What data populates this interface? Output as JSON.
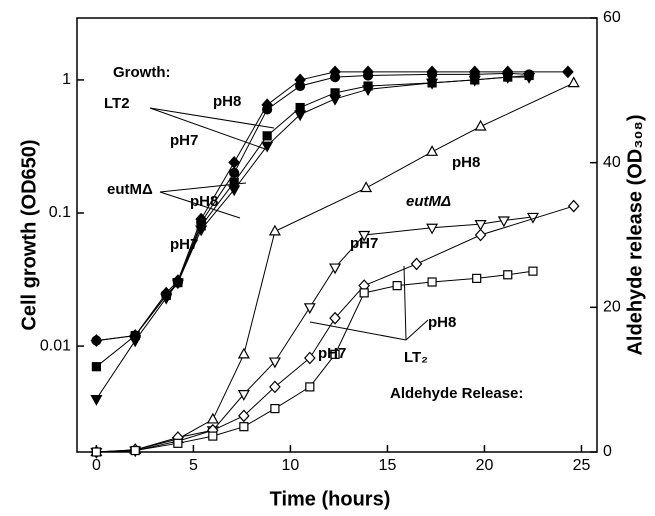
{
  "chart_data": {
    "type": "line",
    "xlabel": "Time (hours)",
    "ylabel": "Cell growth (OD650)",
    "y2label": "Aldehyde release (OD₃₀₈)",
    "xlim": [
      -1,
      25.8
    ],
    "xticks": [
      0,
      5,
      10,
      15,
      20,
      25
    ],
    "ylim": [
      0.0016,
      2.92
    ],
    "yticks": [
      0.01,
      0.1,
      1
    ],
    "log_y": true,
    "y2lim": [
      0,
      60
    ],
    "y2ticks": [
      0,
      20,
      40,
      60
    ],
    "annotations": [
      "Growth:",
      "LT2",
      "pH8",
      "pH7",
      "eutMΔ",
      "pH8",
      "pH7",
      "pH8",
      "pH7",
      "eutMΔ",
      "pH8",
      "pH7",
      "LT₂",
      "Aldehyde Release:"
    ],
    "series": [
      {
        "color": "#000000",
        "marker": "diamond",
        "filled": true,
        "axis": "y",
        "x": [
          0,
          2,
          3.6,
          4.2,
          5.4,
          7.1,
          8.8,
          10.5,
          12.3,
          14,
          17.3,
          19.5,
          21.2,
          24.3
        ],
        "values": [
          0.011,
          0.012,
          0.025,
          0.031,
          0.09,
          0.24,
          0.65,
          1.0,
          1.15,
          1.15,
          1.15,
          1.15,
          1.15,
          1.15
        ]
      },
      {
        "color": "#000000",
        "marker": "circle",
        "filled": true,
        "axis": "y",
        "x": [
          0,
          2,
          3.6,
          4.2,
          5.4,
          7.1,
          8.8,
          10.5,
          12.3,
          14,
          17.3,
          19.5,
          21.2,
          22.3
        ],
        "values": [
          0.011,
          0.012,
          0.024,
          0.03,
          0.085,
          0.2,
          0.6,
          0.9,
          1.05,
          1.08,
          1.1,
          1.1,
          1.12,
          1.1
        ]
      },
      {
        "color": "#000000",
        "marker": "square",
        "filled": true,
        "axis": "y",
        "x": [
          0,
          2,
          3.6,
          4.2,
          5.4,
          7.1,
          8.8,
          10.5,
          12.3,
          14,
          17.3,
          19.5,
          21.2,
          22.3
        ],
        "values": [
          0.007,
          0.012,
          0.024,
          0.03,
          0.08,
          0.17,
          0.38,
          0.62,
          0.8,
          0.9,
          0.95,
          1.0,
          1.05,
          1.08
        ]
      },
      {
        "color": "#000000",
        "marker": "triangle-down",
        "filled": true,
        "axis": "y",
        "x": [
          0,
          2,
          3.6,
          4.2,
          5.4,
          7.1,
          8.8,
          10.5,
          12.3,
          14,
          17.3,
          19.5,
          21.2,
          22.3
        ],
        "values": [
          0.004,
          0.011,
          0.023,
          0.03,
          0.075,
          0.15,
          0.32,
          0.55,
          0.72,
          0.85,
          0.95,
          1.0,
          1.05,
          1.05
        ]
      },
      {
        "color": "#000000",
        "marker": "triangle-up",
        "filled": false,
        "axis": "y2",
        "x": [
          0,
          2,
          4.2,
          6,
          7.6,
          9.2,
          13.9,
          17.3,
          19.8,
          24.6
        ],
        "values": [
          0,
          0.3,
          1.8,
          4.5,
          13.5,
          30.5,
          36.5,
          41.5,
          45,
          51
        ]
      },
      {
        "color": "#000000",
        "marker": "triangle-down",
        "filled": false,
        "axis": "y2",
        "x": [
          0,
          2,
          4.2,
          6,
          7.6,
          9.2,
          11,
          12.3,
          13.8,
          17.3,
          19.8,
          21,
          22.5
        ],
        "values": [
          0,
          0.2,
          1.5,
          3,
          8,
          12.5,
          20,
          25.5,
          30,
          31,
          31.5,
          32,
          32.5
        ]
      },
      {
        "color": "#000000",
        "marker": "diamond",
        "filled": false,
        "axis": "y2",
        "x": [
          0,
          2,
          4.2,
          6,
          7.6,
          9.2,
          11,
          12.3,
          13.8,
          16.5,
          19.8,
          24.6
        ],
        "values": [
          0,
          0.3,
          2,
          3,
          5,
          9,
          13,
          18.5,
          23,
          26,
          30,
          34
        ]
      },
      {
        "color": "#000000",
        "marker": "square",
        "filled": false,
        "axis": "y2",
        "x": [
          0,
          2,
          4.2,
          6,
          7.6,
          9.2,
          11,
          12.3,
          13.8,
          15.5,
          17.3,
          19.6,
          21.2,
          22.5
        ],
        "values": [
          0,
          0.2,
          1.2,
          2.2,
          3.5,
          6,
          9,
          13.5,
          22,
          23,
          23.5,
          24,
          24.5,
          25
        ]
      }
    ]
  }
}
